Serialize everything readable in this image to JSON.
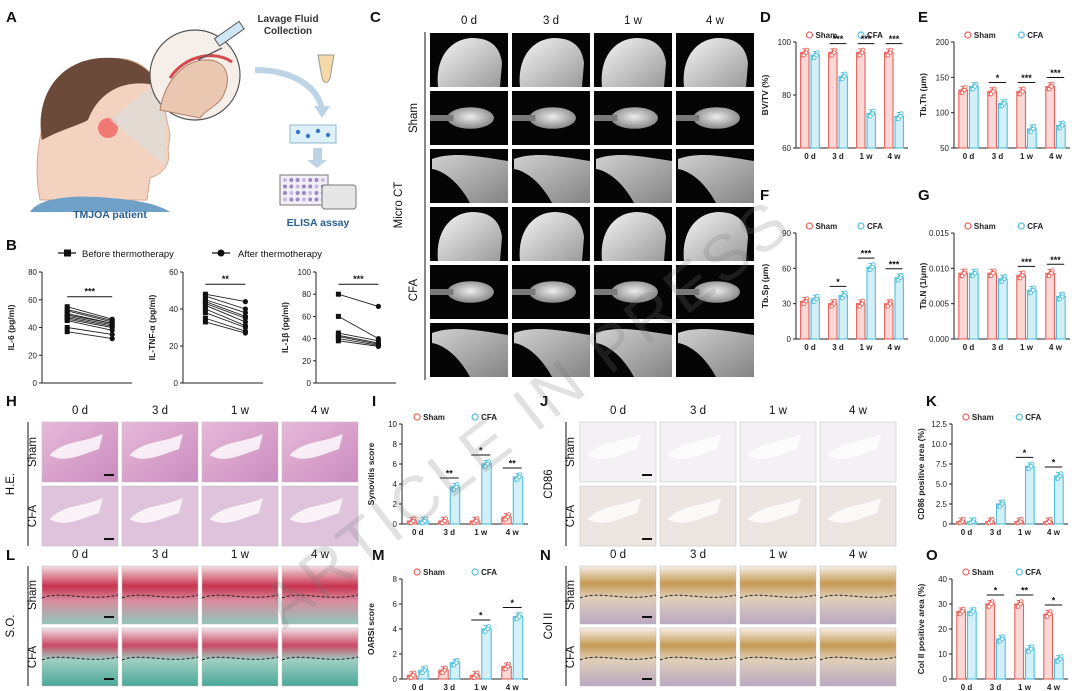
{
  "watermark": "ARTICLE IN PRESS",
  "colors": {
    "sham": "#e8625a",
    "cfa": "#4fc0e0"
  },
  "panel_letters": [
    "A",
    "B",
    "C",
    "D",
    "E",
    "F",
    "G",
    "H",
    "I",
    "J",
    "K",
    "L",
    "M",
    "N",
    "O"
  ],
  "time_labels": [
    "0 d",
    "3 d",
    "1 w",
    "4 w"
  ],
  "group_labels": [
    "Sham",
    "CFA"
  ],
  "panel_A": {
    "lavage": "Lavage Fluid\nCollection",
    "patient": "TMJOA patient",
    "elisa": "ELISA assay"
  },
  "panel_B_legend": {
    "before": "Before thermotherapy",
    "after": "After thermotherapy"
  },
  "panel_C_label": "Micro CT",
  "panel_H_label": "H.E.",
  "panel_J_label": "CD86",
  "panel_L_label": "S.O.",
  "panel_N_label": "Col II",
  "chart_data": [
    {
      "id": "B1",
      "type": "line",
      "ylabel": "IL-6 (pg/ml)",
      "ylim": [
        0,
        80
      ],
      "yticks": [
        0,
        20,
        40,
        60,
        80
      ],
      "sig": "***",
      "before": [
        55,
        53,
        52,
        50,
        49,
        48,
        47,
        46,
        45,
        40,
        37
      ],
      "after": [
        46,
        45,
        44,
        43,
        43,
        42,
        41,
        40,
        38,
        35,
        32
      ]
    },
    {
      "id": "B2",
      "type": "line",
      "ylabel": "IL-TNF-α (pg/ml)",
      "ylim": [
        0,
        60
      ],
      "yticks": [
        0,
        20,
        40,
        60
      ],
      "sig": "**",
      "before": [
        48,
        47,
        45,
        44,
        43,
        42,
        40,
        38,
        35,
        33
      ],
      "after": [
        44,
        40,
        38,
        36,
        35,
        33,
        31,
        30,
        28,
        27
      ]
    },
    {
      "id": "B3",
      "type": "line",
      "ylabel": "IL-1β (pg/ml)",
      "ylim": [
        0,
        100
      ],
      "yticks": [
        0,
        20,
        40,
        60,
        80,
        100
      ],
      "sig": "***",
      "before": [
        80,
        60,
        45,
        43,
        42,
        40,
        38
      ],
      "after": [
        69,
        40,
        38,
        36,
        35,
        34,
        33
      ]
    },
    {
      "id": "D",
      "type": "bar",
      "ylabel": "BV/TV (%)",
      "ylim": [
        60,
        100
      ],
      "yticks": [
        60,
        80,
        100
      ],
      "categories": [
        "0 d",
        "3 d",
        "1 w",
        "4 w"
      ],
      "series": [
        {
          "name": "Sham",
          "values": [
            96,
            96,
            96,
            96
          ]
        },
        {
          "name": "CFA",
          "values": [
            95,
            87,
            73,
            72
          ]
        }
      ],
      "sig": [
        "",
        "***",
        "***",
        "***"
      ]
    },
    {
      "id": "E",
      "type": "bar",
      "ylabel": "Tb.Th (μm)",
      "ylim": [
        50,
        200
      ],
      "yticks": [
        50,
        100,
        150,
        200
      ],
      "categories": [
        "0 d",
        "3 d",
        "1 w",
        "4 w"
      ],
      "series": [
        {
          "name": "Sham",
          "values": [
            132,
            130,
            130,
            137
          ]
        },
        {
          "name": "CFA",
          "values": [
            137,
            113,
            77,
            82
          ]
        }
      ],
      "sig": [
        "",
        "*",
        "***",
        "***"
      ]
    },
    {
      "id": "F",
      "type": "bar",
      "ylabel": "Tb.Sp (μm)",
      "ylim": [
        0,
        90
      ],
      "yticks": [
        0,
        30,
        60,
        90
      ],
      "categories": [
        "0 d",
        "3 d",
        "1 w",
        "4 w"
      ],
      "series": [
        {
          "name": "Sham",
          "values": [
            32,
            30,
            30,
            30
          ]
        },
        {
          "name": "CFA",
          "values": [
            34,
            37,
            61,
            52
          ]
        }
      ],
      "sig": [
        "",
        "*",
        "***",
        "***"
      ]
    },
    {
      "id": "G",
      "type": "bar",
      "ylabel": "Tb.N (1/μm)",
      "ylim": [
        0,
        0.015
      ],
      "yticks": [
        0,
        0.005,
        0.01,
        0.015
      ],
      "ytick_labels": [
        "0.000",
        "0.005",
        "0.010",
        "0.015"
      ],
      "categories": [
        "0 d",
        "3 d",
        "1 w",
        "4 w"
      ],
      "series": [
        {
          "name": "Sham",
          "values": [
            0.0093,
            0.0093,
            0.009,
            0.0093
          ]
        },
        {
          "name": "CFA",
          "values": [
            0.0093,
            0.0085,
            0.0069,
            0.006
          ]
        }
      ],
      "sig": [
        "",
        "",
        "***",
        "***"
      ]
    },
    {
      "id": "I",
      "type": "bar",
      "ylabel": "Synovitis score",
      "ylim": [
        0,
        10
      ],
      "yticks": [
        0,
        2,
        4,
        6,
        8,
        10
      ],
      "categories": [
        "0 d",
        "3 d",
        "1 w",
        "4 w"
      ],
      "series": [
        {
          "name": "Sham",
          "values": [
            0.3,
            0.3,
            0.3,
            0.7
          ]
        },
        {
          "name": "CFA",
          "values": [
            0.3,
            3.7,
            6.0,
            4.7
          ]
        }
      ],
      "sig": [
        "",
        "**",
        "*",
        "**"
      ]
    },
    {
      "id": "K",
      "type": "bar",
      "ylabel": "CD86 positive area (%)",
      "ylim": [
        0,
        12.5
      ],
      "yticks": [
        0,
        2.5,
        5.0,
        7.5,
        10.0,
        12.5
      ],
      "ytick_labels": [
        "0",
        "2.5",
        "5.0",
        "7.5",
        "10.0",
        "12.5"
      ],
      "categories": [
        "0 d",
        "3 d",
        "1 w",
        "4 w"
      ],
      "series": [
        {
          "name": "Sham",
          "values": [
            0.3,
            0.3,
            0.3,
            0.3
          ]
        },
        {
          "name": "CFA",
          "values": [
            0.3,
            2.5,
            7.2,
            6.0
          ]
        }
      ],
      "sig": [
        "",
        "",
        "*",
        "*"
      ]
    },
    {
      "id": "M",
      "type": "bar",
      "ylabel": "OARSI score",
      "ylim": [
        0,
        8
      ],
      "yticks": [
        0,
        2,
        4,
        6,
        8
      ],
      "categories": [
        "0 d",
        "3 d",
        "1 w",
        "4 w"
      ],
      "series": [
        {
          "name": "Sham",
          "values": [
            0.3,
            0.7,
            0.3,
            1.0
          ]
        },
        {
          "name": "CFA",
          "values": [
            0.7,
            1.3,
            4.0,
            5.0
          ]
        }
      ],
      "sig": [
        "",
        "",
        "*",
        "*"
      ]
    },
    {
      "id": "O",
      "type": "bar",
      "ylabel": "Col II positive area (%)",
      "ylim": [
        0,
        40
      ],
      "yticks": [
        0,
        10,
        20,
        30,
        40
      ],
      "categories": [
        "0 d",
        "3 d",
        "1 w",
        "4 w"
      ],
      "series": [
        {
          "name": "Sham",
          "values": [
            27,
            30,
            30,
            26
          ]
        },
        {
          "name": "CFA",
          "values": [
            27,
            16,
            12,
            8
          ]
        }
      ],
      "sig": [
        "",
        "*",
        "**",
        "*"
      ]
    }
  ]
}
